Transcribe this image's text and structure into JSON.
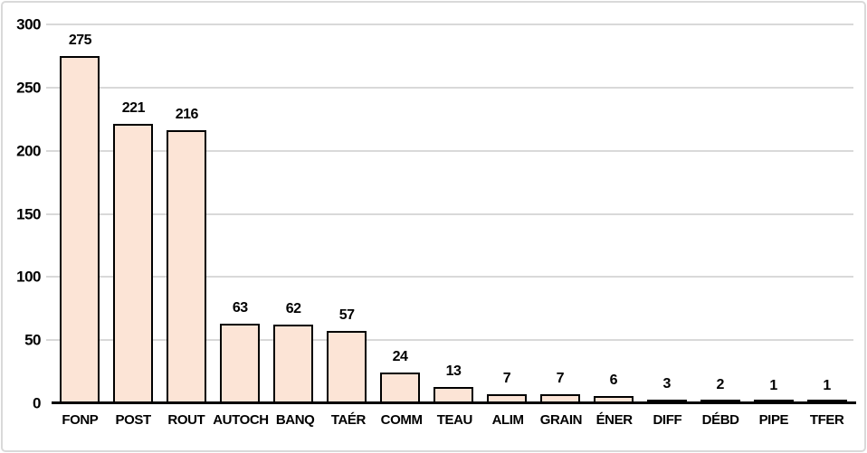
{
  "chart_data": {
    "type": "bar",
    "title": "",
    "xlabel": "",
    "ylabel": "",
    "categories": [
      "FONP",
      "POST",
      "ROUT",
      "AUTOCH",
      "BANQ",
      "TAÉR",
      "COMM",
      "TEAU",
      "ALIM",
      "GRAIN",
      "ÉNER",
      "DIFF",
      "DÉBD",
      "PIPE",
      "TFER"
    ],
    "values": [
      275,
      221,
      216,
      63,
      62,
      57,
      24,
      13,
      7,
      7,
      6,
      3,
      2,
      1,
      1
    ],
    "data_labels_shown": true,
    "ylim": [
      0,
      300
    ],
    "yticks": [
      0,
      50,
      100,
      150,
      200,
      250,
      300
    ],
    "grid": true,
    "legend": "none",
    "colors": {
      "bar_fill": "#fce4d6",
      "bar_border": "#000000",
      "gridline": "#d9d9d9",
      "axis_line": "#000000",
      "text": "#000000",
      "chart_border": "#d9d9d9",
      "background": "#ffffff"
    }
  }
}
